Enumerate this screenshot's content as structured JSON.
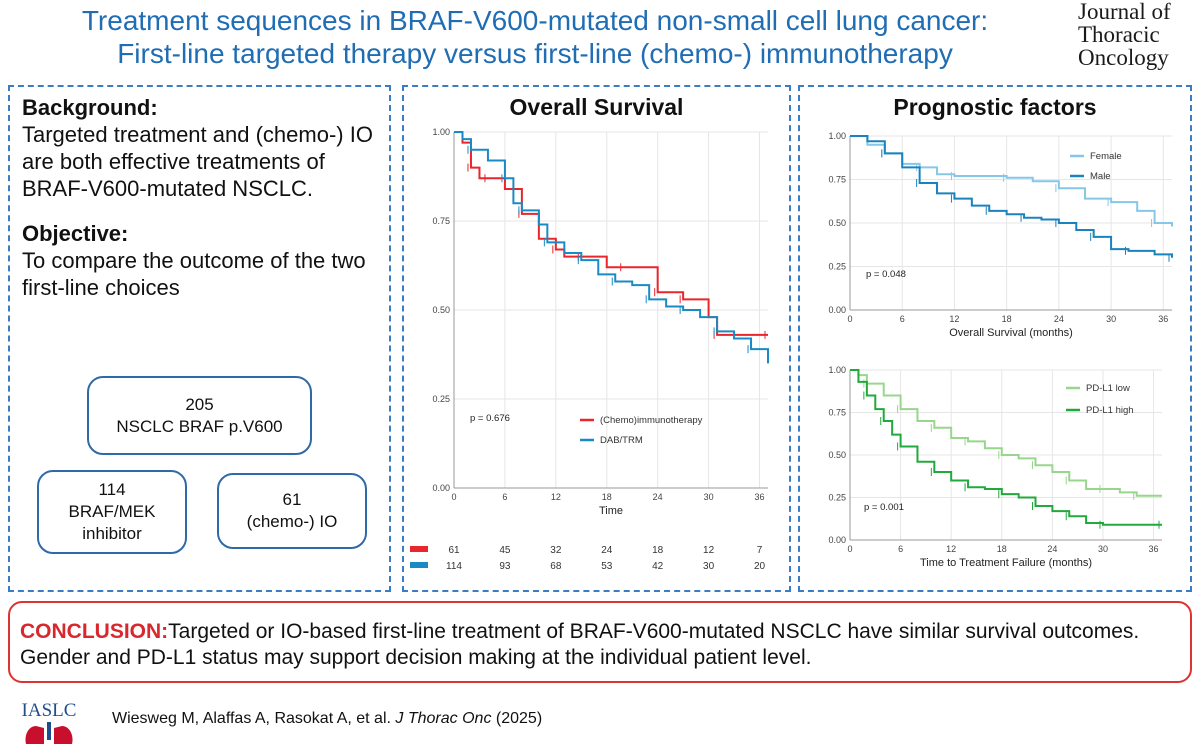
{
  "header": {
    "title_line1": "Treatment sequences in BRAF-V600-mutated non-small cell lung cancer:",
    "title_line2": "First-line targeted therapy versus first-line (chemo-) immunotherapy",
    "journal": [
      "Journal of",
      "Thoracic",
      "Oncology"
    ]
  },
  "left": {
    "background_heading": "Background:",
    "background_text": "Targeted treatment and (chemo-) IO are both effective treatments of BRAF-V600-mutated NSCLC.",
    "objective_heading": "Objective:",
    "objective_text": "To compare the outcome of the two first-line choices",
    "total_n": "205",
    "total_label": "NSCLC BRAF p.V600",
    "arm1_n": "114",
    "arm1_label": "BRAF/MEK inhibitor",
    "arm2_n": "61",
    "arm2_label": "(chemo-) IO"
  },
  "colors": {
    "red": "#e8262b",
    "blue": "#1a8ac4",
    "lightblue": "#86c7e8",
    "darkblue": "#1a82bc",
    "lightgreen": "#97d68c",
    "green": "#22a93d",
    "axis": "#888888"
  },
  "chart_data": [
    {
      "type": "line",
      "title": "Overall Survival",
      "xlabel": "Time",
      "ylabel": "",
      "xticks": [
        0,
        6,
        12,
        18,
        24,
        30,
        36
      ],
      "yticks": [
        "0.00",
        "0.25",
        "0.50",
        "0.75",
        "1.00"
      ],
      "xlim": [
        0,
        37
      ],
      "ylim": [
        0,
        1
      ],
      "pvalue": "p = 0.676",
      "series": [
        {
          "name": "(Chemo)immunotherapy",
          "color": "red",
          "x": [
            0,
            1,
            2,
            3,
            4,
            6,
            8,
            10,
            12,
            13,
            15,
            18,
            20,
            21,
            24,
            25,
            27,
            30,
            31,
            32,
            37
          ],
          "y": [
            1,
            0.97,
            0.9,
            0.87,
            0.87,
            0.84,
            0.77,
            0.7,
            0.67,
            0.65,
            0.65,
            0.62,
            0.62,
            0.62,
            0.55,
            0.55,
            0.53,
            0.48,
            0.43,
            0.43,
            0.43
          ]
        },
        {
          "name": "DAB/TRM",
          "color": "blue",
          "x": [
            0,
            1,
            2,
            4,
            6,
            7,
            8,
            10,
            11,
            13,
            15,
            17,
            19,
            21,
            23,
            25,
            27,
            29,
            31,
            33,
            35,
            37
          ],
          "y": [
            1,
            0.98,
            0.95,
            0.92,
            0.87,
            0.8,
            0.78,
            0.74,
            0.69,
            0.66,
            0.64,
            0.6,
            0.58,
            0.57,
            0.53,
            0.51,
            0.5,
            0.48,
            0.44,
            0.42,
            0.39,
            0.35
          ]
        }
      ],
      "risk_table": [
        {
          "color": "red",
          "values": [
            "61",
            "45",
            "32",
            "24",
            "18",
            "12",
            "7"
          ]
        },
        {
          "color": "blue",
          "values": [
            "114",
            "93",
            "68",
            "53",
            "42",
            "30",
            "20"
          ]
        }
      ]
    },
    {
      "type": "line",
      "title": "Prognostic factors",
      "xlabel": "Overall Survival (months)",
      "xticks": [
        0,
        6,
        12,
        18,
        24,
        30,
        36
      ],
      "yticks": [
        "0.00",
        "0.25",
        "0.50",
        "0.75",
        "1.00"
      ],
      "xlim": [
        0,
        37
      ],
      "ylim": [
        0,
        1
      ],
      "pvalue": "p = 0.048",
      "series": [
        {
          "name": "Female",
          "color": "lightblue",
          "x": [
            0,
            2,
            4,
            6,
            8,
            10,
            12,
            15,
            18,
            21,
            24,
            27,
            30,
            33,
            35,
            37
          ],
          "y": [
            1,
            0.95,
            0.9,
            0.84,
            0.82,
            0.78,
            0.77,
            0.77,
            0.76,
            0.74,
            0.7,
            0.64,
            0.62,
            0.57,
            0.5,
            0.48
          ]
        },
        {
          "name": "Male",
          "color": "darkblue",
          "x": [
            0,
            2,
            4,
            6,
            8,
            10,
            12,
            14,
            16,
            18,
            20,
            22,
            24,
            26,
            28,
            30,
            32,
            35,
            37
          ],
          "y": [
            1,
            0.97,
            0.9,
            0.82,
            0.73,
            0.67,
            0.64,
            0.6,
            0.57,
            0.55,
            0.53,
            0.52,
            0.5,
            0.46,
            0.42,
            0.35,
            0.34,
            0.32,
            0.3
          ]
        }
      ]
    },
    {
      "type": "line",
      "xlabel": "Time to Treatment Failure (months)",
      "xticks": [
        0,
        6,
        12,
        18,
        24,
        30,
        36
      ],
      "yticks": [
        "0.00",
        "0.25",
        "0.50",
        "0.75",
        "1.00"
      ],
      "xlim": [
        0,
        37
      ],
      "ylim": [
        0,
        1
      ],
      "pvalue": "p = 0.001",
      "series": [
        {
          "name": "PD-L1 low",
          "color": "lightgreen",
          "x": [
            0,
            1,
            2,
            4,
            6,
            8,
            10,
            12,
            14,
            16,
            18,
            20,
            22,
            24,
            26,
            28,
            30,
            32,
            34,
            37
          ],
          "y": [
            1,
            0.97,
            0.92,
            0.85,
            0.77,
            0.7,
            0.66,
            0.6,
            0.58,
            0.54,
            0.5,
            0.48,
            0.44,
            0.4,
            0.35,
            0.3,
            0.3,
            0.28,
            0.26,
            0.26
          ]
        },
        {
          "name": "PD-L1 high",
          "color": "green",
          "x": [
            0,
            1,
            2,
            3,
            4,
            5,
            6,
            8,
            10,
            12,
            14,
            16,
            18,
            20,
            22,
            24,
            26,
            28,
            30,
            33,
            37
          ],
          "y": [
            1,
            0.93,
            0.85,
            0.77,
            0.7,
            0.62,
            0.55,
            0.46,
            0.4,
            0.35,
            0.31,
            0.3,
            0.27,
            0.25,
            0.2,
            0.17,
            0.14,
            0.1,
            0.09,
            0.09,
            0.09
          ]
        }
      ]
    }
  ],
  "conclusion": {
    "label": "CONCLUSION:",
    "text": "Targeted or IO-based first-line treatment of BRAF-V600-mutated NSCLC have similar survival outcomes. Gender and PD-L1 status may support decision making at the individual patient level."
  },
  "footer": {
    "logo_text": "IASLC",
    "authors": "Wiesweg M, Alaffas A, Rasokat A, et al.",
    "journal_abbr": "J Thorac Onc",
    "year": "(2025)"
  }
}
